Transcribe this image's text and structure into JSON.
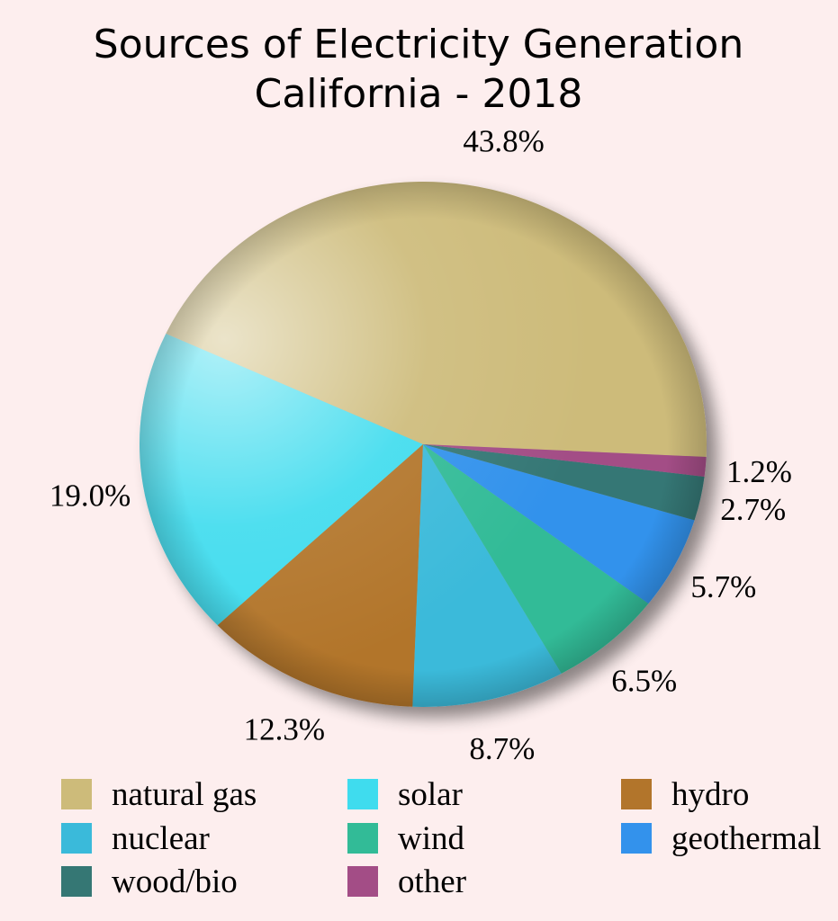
{
  "chart_data": {
    "type": "pie",
    "title": "Sources of Electricity Generation",
    "subtitle": "California - 2018",
    "categories": [
      "natural gas",
      "solar",
      "hydro",
      "nuclear",
      "wind",
      "geothermal",
      "wood/bio",
      "other"
    ],
    "values": [
      43.8,
      19.0,
      12.3,
      8.7,
      6.5,
      5.7,
      2.7,
      1.2
    ],
    "labels": [
      "43.8%",
      "19.0%",
      "12.3%",
      "8.7%",
      "6.5%",
      "5.7%",
      "2.7%",
      "1.2%"
    ],
    "colors": [
      "#cdbb7a",
      "#3fdcee",
      "#b2752b",
      "#3abada",
      "#32bb97",
      "#3392ec",
      "#357774",
      "#a34d86"
    ],
    "legend": {
      "placement": "bottom",
      "items": [
        "natural gas",
        "nuclear",
        "wood/bio",
        "solar",
        "wind",
        "other",
        "hydro",
        "geothermal"
      ]
    }
  }
}
